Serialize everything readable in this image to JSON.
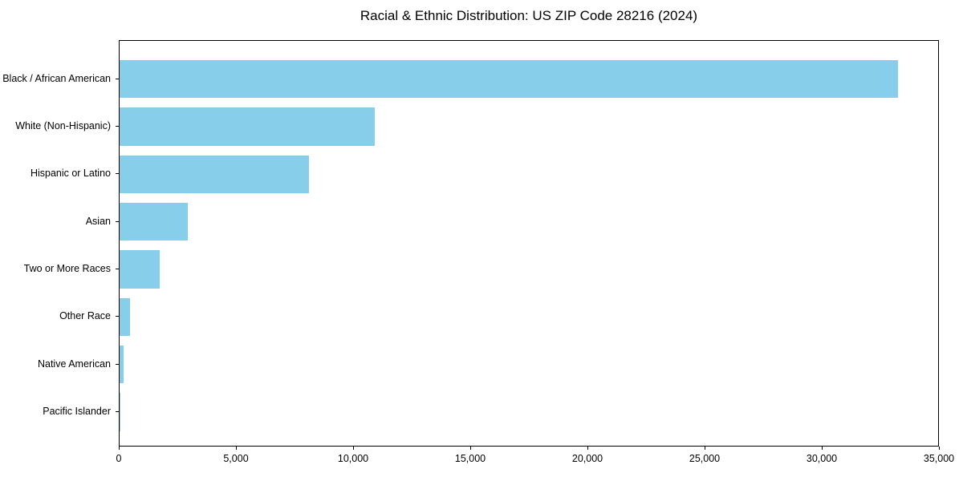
{
  "chart_data": {
    "type": "bar",
    "orientation": "horizontal",
    "title": "Racial & Ethnic Distribution: US ZIP Code 28216 (2024)",
    "categories": [
      "Black / African American",
      "White (Non-Hispanic)",
      "Hispanic or Latino",
      "Asian",
      "Two or More Races",
      "Other Race",
      "Native American",
      "Pacific Islander"
    ],
    "values": [
      33300,
      10900,
      8100,
      2900,
      1700,
      430,
      180,
      25
    ],
    "xlabel": "",
    "ylabel": "",
    "xlim": [
      0,
      35000
    ],
    "xticks": [
      0,
      5000,
      10000,
      15000,
      20000,
      25000,
      30000,
      35000
    ],
    "xtick_labels": [
      "0",
      "5,000",
      "10,000",
      "15,000",
      "20,000",
      "25,000",
      "30,000",
      "35,000"
    ],
    "bar_color": "#87CEEB",
    "axis_color": "#000000",
    "background_color": "#ffffff",
    "grid": false,
    "legend": null
  }
}
